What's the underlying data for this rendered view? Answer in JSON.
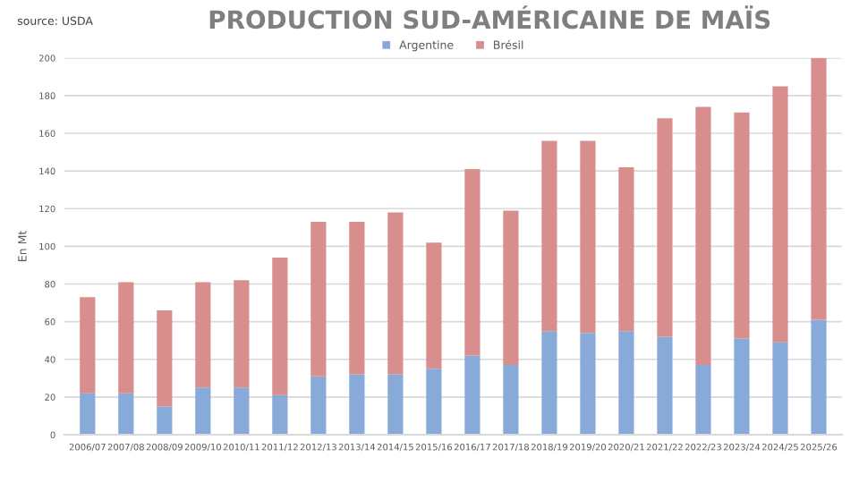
{
  "chart_data": {
    "type": "bar",
    "title": "PRODUCTION SUD-AMÉRICAINE DE MAÏS",
    "ylabel": "En Mt",
    "annotations": [
      "source: USDA"
    ],
    "categories": [
      "2006/07",
      "2007/08",
      "2008/09",
      "2009/10",
      "2010/11",
      "2011/12",
      "2012/13",
      "2013/14",
      "2014/15",
      "2015/16",
      "2016/17",
      "2017/18",
      "2018/19",
      "2019/20",
      "2020/21",
      "2021/22",
      "2022/23",
      "2023/24",
      "2024/25",
      "2025/26"
    ],
    "stacked": true,
    "series": [
      {
        "name": "Argentine",
        "color": "#87aad8",
        "values": [
          22,
          22,
          15,
          25,
          25,
          21,
          31,
          32,
          32,
          35,
          42,
          37,
          55,
          54,
          55,
          52,
          37,
          51,
          49,
          61
        ]
      },
      {
        "name": "Brésil",
        "color": "#d98e8e",
        "values": [
          51,
          59,
          51,
          56,
          57,
          73,
          82,
          81,
          86,
          67,
          99,
          82,
          101,
          102,
          87,
          116,
          137,
          120,
          136,
          139
        ]
      }
    ],
    "ylim": [
      0,
      200
    ],
    "yticks": [
      0,
      20,
      40,
      60,
      80,
      100,
      120,
      140,
      160,
      180,
      200
    ],
    "grid": "y",
    "legend": "top"
  }
}
